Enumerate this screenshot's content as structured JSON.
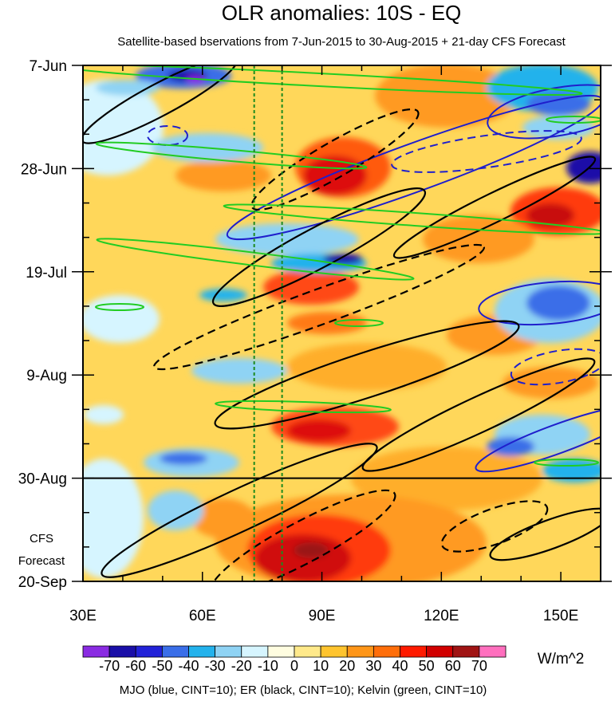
{
  "chart_data": {
    "type": "heatmap",
    "title": "OLR anomalies: 10S - EQ",
    "subtitle": "Satellite-based bservations from 7-Jun-2015 to 30-Aug-2015 + 21-day CFS Forecast",
    "xlabel": "",
    "ylabel": "",
    "x_range": [
      30,
      160
    ],
    "x_ticks": [
      {
        "value": 30,
        "label": "30E"
      },
      {
        "value": 60,
        "label": "60E"
      },
      {
        "value": 90,
        "label": "90E"
      },
      {
        "value": 120,
        "label": "120E"
      },
      {
        "value": 150,
        "label": "150E"
      }
    ],
    "y_range_days": [
      0,
      105
    ],
    "y_ticks": [
      {
        "day": 0,
        "label": "7-Jun"
      },
      {
        "day": 21,
        "label": "28-Jun"
      },
      {
        "day": 42,
        "label": "19-Jul"
      },
      {
        "day": 63,
        "label": "9-Aug"
      },
      {
        "day": 84,
        "label": "30-Aug"
      },
      {
        "day": 105,
        "label": "20-Sep"
      }
    ],
    "forecast_line_day": 84,
    "forecast_label_lines": [
      "CFS",
      "Forecast"
    ],
    "reference_lines_lon": [
      73,
      80
    ],
    "colorbar": {
      "levels": [
        -70,
        -60,
        -50,
        -40,
        -30,
        -20,
        -10,
        0,
        10,
        20,
        30,
        40,
        50,
        60,
        70
      ],
      "labels": [
        "-70",
        "-60",
        "-50",
        "-40",
        "-30",
        "-20",
        "-10",
        "0",
        "10",
        "20",
        "30",
        "40",
        "50",
        "60",
        "70"
      ],
      "colors": [
        "#8a2be2",
        "#1a0fa8",
        "#2222d8",
        "#3a6ee8",
        "#23b2ec",
        "#8fd3f4",
        "#d6f5ff",
        "#fffde0",
        "#ffe98a",
        "#ffc42e",
        "#ff9618",
        "#ff6e0a",
        "#ff1a00",
        "#d10000",
        "#a01414",
        "#ff6fbe"
      ],
      "units": "W/m^2"
    },
    "contours": [
      {
        "name": "MJO",
        "color": "#1f1fcc",
        "cint": 10
      },
      {
        "name": "ER",
        "color": "#000000",
        "cint": 10
      },
      {
        "name": "Kelvin",
        "color": "#22cc22",
        "cint": 10
      }
    ],
    "footer": "MJO (blue, CINT=10); ER (black, CINT=10); Kelvin (green, CINT=10)"
  }
}
